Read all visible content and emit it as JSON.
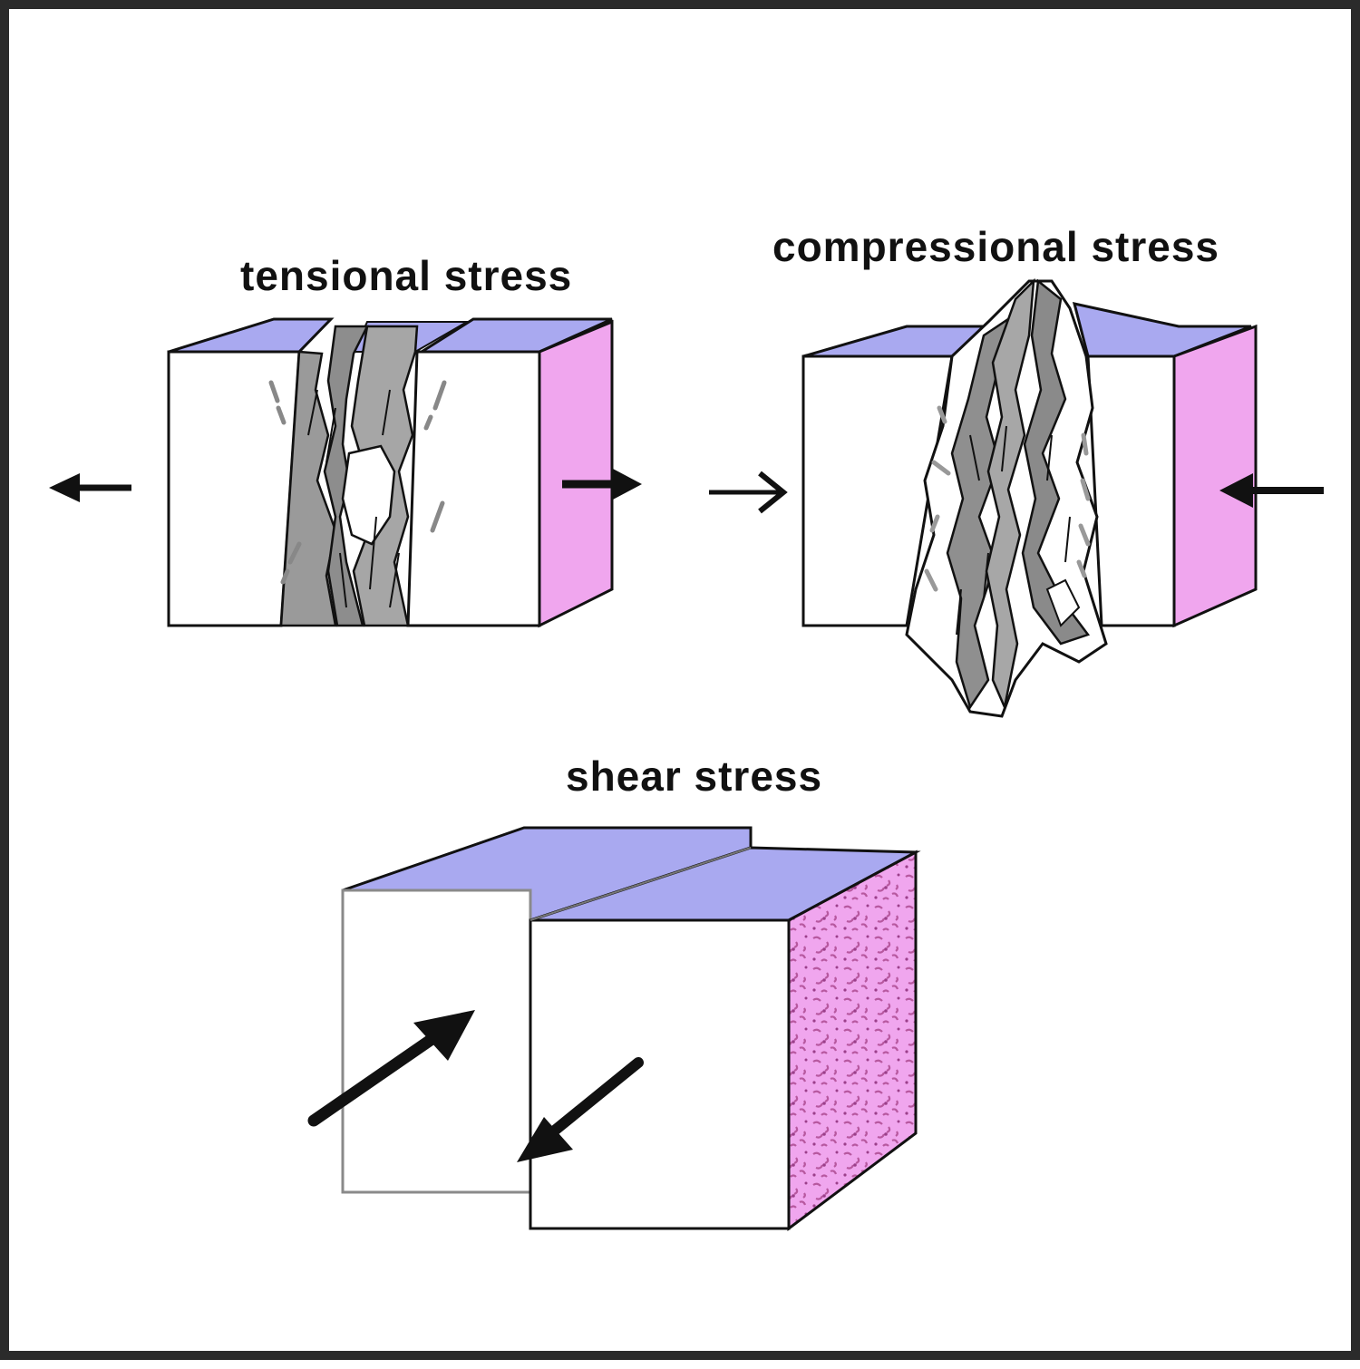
{
  "labels": {
    "tensional": "tensional stress",
    "compressional": "compressional stress",
    "shear": "shear stress"
  },
  "colors": {
    "top_face": "#a9a9f0",
    "side_face": "#f0a6ee",
    "speckle": "#b7589f",
    "fault_gray": "#9a9a9a",
    "ink": "#111111",
    "frame": "#2b2b2b"
  }
}
